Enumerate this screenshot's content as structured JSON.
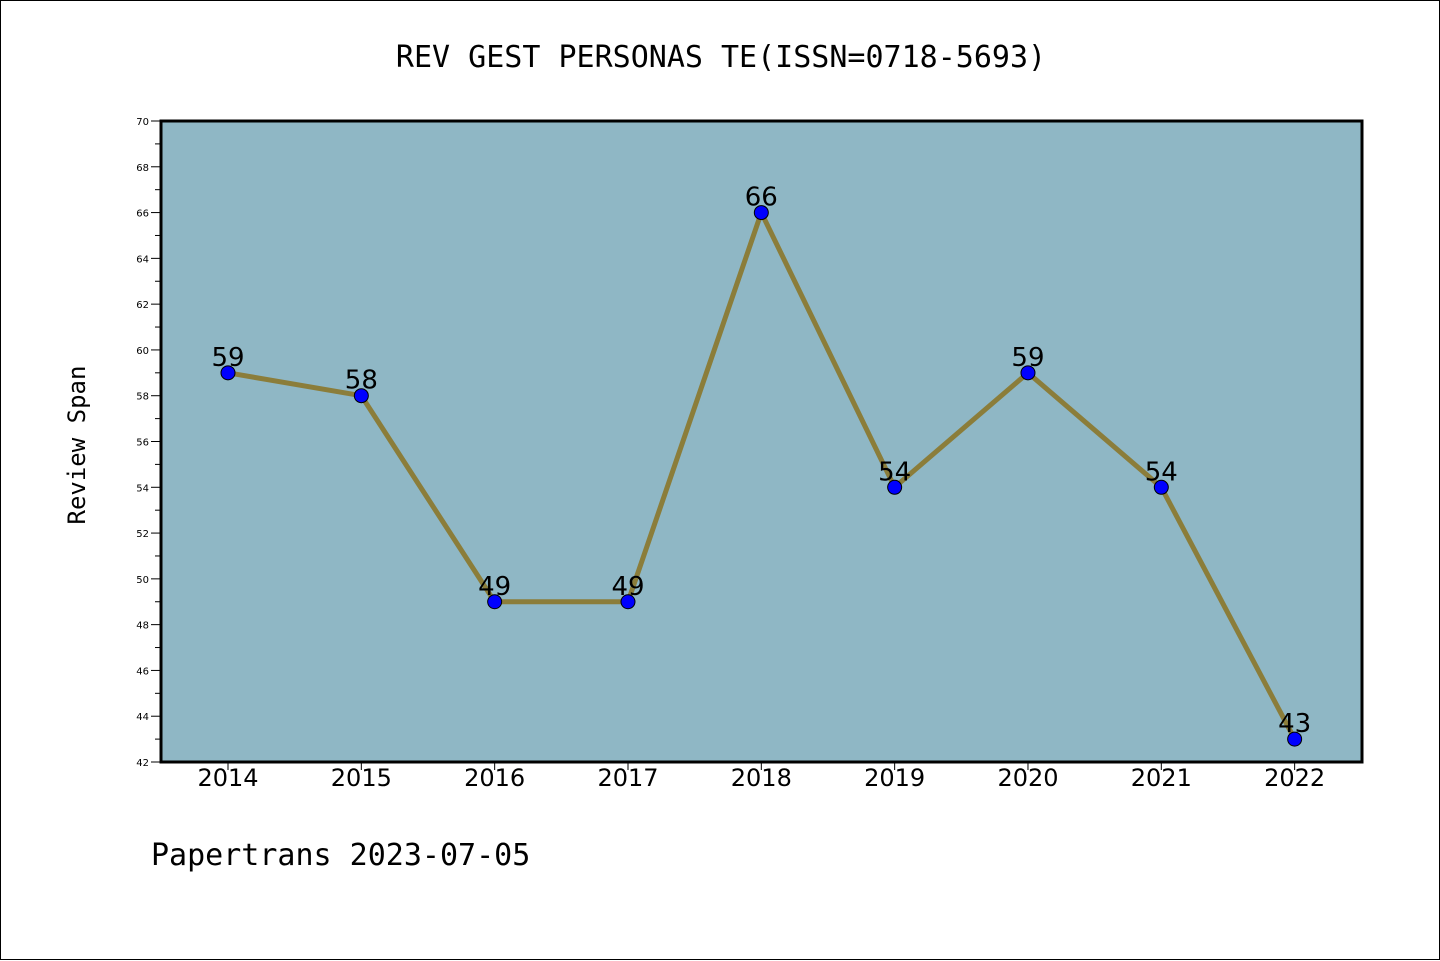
{
  "chart_data": {
    "type": "line",
    "title": "REV GEST PERSONAS TE(ISSN=0718-5693)",
    "xlabel": "",
    "ylabel": "Review Span",
    "categories": [
      "2014",
      "2015",
      "2016",
      "2017",
      "2018",
      "2019",
      "2020",
      "2021",
      "2022"
    ],
    "series": [
      {
        "values": [
          59,
          58,
          49,
          49,
          66,
          54,
          59,
          54,
          43
        ]
      }
    ],
    "ylim": [
      42,
      70
    ],
    "yticks": [
      "42",
      "44",
      "46",
      "48",
      "50",
      "52",
      "54",
      "56",
      "58",
      "60",
      "62",
      "64",
      "66",
      "68",
      "70"
    ],
    "grid": false,
    "legend": "none",
    "colors": {
      "plot_background": "#8FB7C5",
      "line": "#8B7D3A",
      "marker": "#0000FF"
    }
  },
  "footer": {
    "text": "Papertrans 2023-07-05"
  }
}
